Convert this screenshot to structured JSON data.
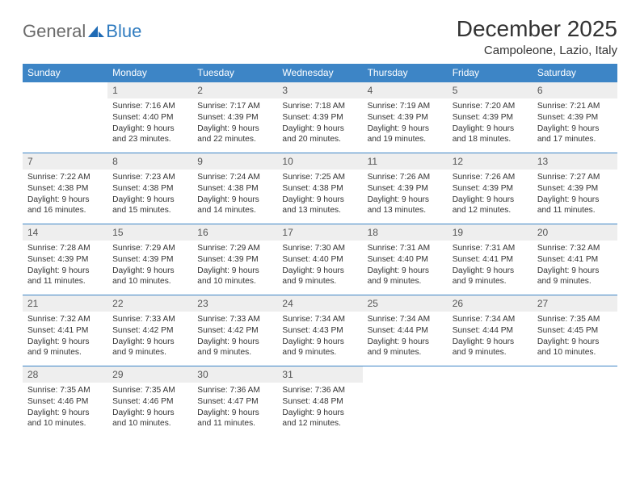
{
  "brand": {
    "part1": "General",
    "part2": "Blue"
  },
  "title": "December 2025",
  "location": "Campoleone, Lazio, Italy",
  "colors": {
    "header_bg": "#3d85c6",
    "header_text": "#ffffff",
    "daynum_bg": "#eeeeee",
    "daynum_text": "#555555",
    "body_text": "#333333",
    "rule": "#3d85c6",
    "logo_gray": "#6a6a6a",
    "logo_blue": "#2f7bbf",
    "page_bg": "#ffffff"
  },
  "typography": {
    "title_fontsize": 28,
    "location_fontsize": 15,
    "header_fontsize": 12,
    "daynum_fontsize": 12,
    "body_fontsize": 10.2,
    "logo_fontsize": 22
  },
  "layout": {
    "columns": 7,
    "rows": 5,
    "first_weekday_index": 1
  },
  "weekdays": [
    "Sunday",
    "Monday",
    "Tuesday",
    "Wednesday",
    "Thursday",
    "Friday",
    "Saturday"
  ],
  "days": [
    {
      "n": 1,
      "sunrise": "7:16 AM",
      "sunset": "4:40 PM",
      "daylight": "9 hours and 23 minutes."
    },
    {
      "n": 2,
      "sunrise": "7:17 AM",
      "sunset": "4:39 PM",
      "daylight": "9 hours and 22 minutes."
    },
    {
      "n": 3,
      "sunrise": "7:18 AM",
      "sunset": "4:39 PM",
      "daylight": "9 hours and 20 minutes."
    },
    {
      "n": 4,
      "sunrise": "7:19 AM",
      "sunset": "4:39 PM",
      "daylight": "9 hours and 19 minutes."
    },
    {
      "n": 5,
      "sunrise": "7:20 AM",
      "sunset": "4:39 PM",
      "daylight": "9 hours and 18 minutes."
    },
    {
      "n": 6,
      "sunrise": "7:21 AM",
      "sunset": "4:39 PM",
      "daylight": "9 hours and 17 minutes."
    },
    {
      "n": 7,
      "sunrise": "7:22 AM",
      "sunset": "4:38 PM",
      "daylight": "9 hours and 16 minutes."
    },
    {
      "n": 8,
      "sunrise": "7:23 AM",
      "sunset": "4:38 PM",
      "daylight": "9 hours and 15 minutes."
    },
    {
      "n": 9,
      "sunrise": "7:24 AM",
      "sunset": "4:38 PM",
      "daylight": "9 hours and 14 minutes."
    },
    {
      "n": 10,
      "sunrise": "7:25 AM",
      "sunset": "4:38 PM",
      "daylight": "9 hours and 13 minutes."
    },
    {
      "n": 11,
      "sunrise": "7:26 AM",
      "sunset": "4:39 PM",
      "daylight": "9 hours and 13 minutes."
    },
    {
      "n": 12,
      "sunrise": "7:26 AM",
      "sunset": "4:39 PM",
      "daylight": "9 hours and 12 minutes."
    },
    {
      "n": 13,
      "sunrise": "7:27 AM",
      "sunset": "4:39 PM",
      "daylight": "9 hours and 11 minutes."
    },
    {
      "n": 14,
      "sunrise": "7:28 AM",
      "sunset": "4:39 PM",
      "daylight": "9 hours and 11 minutes."
    },
    {
      "n": 15,
      "sunrise": "7:29 AM",
      "sunset": "4:39 PM",
      "daylight": "9 hours and 10 minutes."
    },
    {
      "n": 16,
      "sunrise": "7:29 AM",
      "sunset": "4:39 PM",
      "daylight": "9 hours and 10 minutes."
    },
    {
      "n": 17,
      "sunrise": "7:30 AM",
      "sunset": "4:40 PM",
      "daylight": "9 hours and 9 minutes."
    },
    {
      "n": 18,
      "sunrise": "7:31 AM",
      "sunset": "4:40 PM",
      "daylight": "9 hours and 9 minutes."
    },
    {
      "n": 19,
      "sunrise": "7:31 AM",
      "sunset": "4:41 PM",
      "daylight": "9 hours and 9 minutes."
    },
    {
      "n": 20,
      "sunrise": "7:32 AM",
      "sunset": "4:41 PM",
      "daylight": "9 hours and 9 minutes."
    },
    {
      "n": 21,
      "sunrise": "7:32 AM",
      "sunset": "4:41 PM",
      "daylight": "9 hours and 9 minutes."
    },
    {
      "n": 22,
      "sunrise": "7:33 AM",
      "sunset": "4:42 PM",
      "daylight": "9 hours and 9 minutes."
    },
    {
      "n": 23,
      "sunrise": "7:33 AM",
      "sunset": "4:42 PM",
      "daylight": "9 hours and 9 minutes."
    },
    {
      "n": 24,
      "sunrise": "7:34 AM",
      "sunset": "4:43 PM",
      "daylight": "9 hours and 9 minutes."
    },
    {
      "n": 25,
      "sunrise": "7:34 AM",
      "sunset": "4:44 PM",
      "daylight": "9 hours and 9 minutes."
    },
    {
      "n": 26,
      "sunrise": "7:34 AM",
      "sunset": "4:44 PM",
      "daylight": "9 hours and 9 minutes."
    },
    {
      "n": 27,
      "sunrise": "7:35 AM",
      "sunset": "4:45 PM",
      "daylight": "9 hours and 10 minutes."
    },
    {
      "n": 28,
      "sunrise": "7:35 AM",
      "sunset": "4:46 PM",
      "daylight": "9 hours and 10 minutes."
    },
    {
      "n": 29,
      "sunrise": "7:35 AM",
      "sunset": "4:46 PM",
      "daylight": "9 hours and 10 minutes."
    },
    {
      "n": 30,
      "sunrise": "7:36 AM",
      "sunset": "4:47 PM",
      "daylight": "9 hours and 11 minutes."
    },
    {
      "n": 31,
      "sunrise": "7:36 AM",
      "sunset": "4:48 PM",
      "daylight": "9 hours and 12 minutes."
    }
  ],
  "labels": {
    "sunrise": "Sunrise:",
    "sunset": "Sunset:",
    "daylight": "Daylight:"
  }
}
